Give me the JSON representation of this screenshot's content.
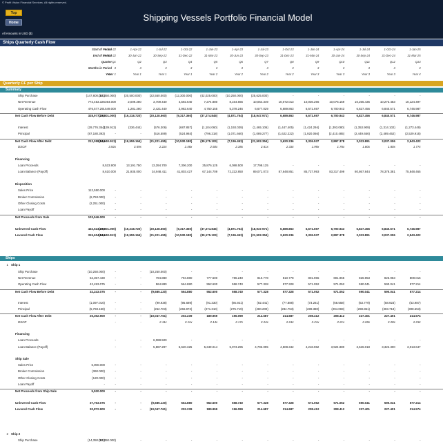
{
  "header": {
    "copyright": "© Profit Vision Financial Services. All rights reserved.",
    "top_button": "Top",
    "home_button": "Home",
    "title": "Shipping Vessels Portfolio Financial Model",
    "amounts_note": "All Amounts in USD ($)"
  },
  "sections": {
    "quarterly_cash_flow": "Ships Quarterly Cash Flow",
    "quarterly_cf_per_ship": "Quarterly CF per Ship",
    "summary": "Summary",
    "ships": "Ships"
  },
  "period_header": {
    "labels": [
      "Start of Period",
      "End of Period",
      "Quarter",
      "Months in Period",
      "Year"
    ],
    "columns": [
      [
        "1-Jan-22",
        "31-Mar-22",
        "Q1",
        "3",
        "Year 1"
      ],
      [
        "1-Apr-22",
        "30-Jun-22",
        "Q2",
        "3",
        "Year 1"
      ],
      [
        "1-Jul-22",
        "30-Sep-22",
        "Q3",
        "3",
        "Year 1"
      ],
      [
        "1-Oct-22",
        "31-Dec-22",
        "Q4",
        "3",
        "Year 1"
      ],
      [
        "1-Jan-23",
        "31-Mar-23",
        "Q5",
        "3",
        "Year 2"
      ],
      [
        "1-Apr-23",
        "30-Jun-23",
        "Q6",
        "3",
        "Year 2"
      ],
      [
        "1-Jul-23",
        "30-Sep-23",
        "Q7",
        "3",
        "Year 2"
      ],
      [
        "1-Oct-23",
        "31-Dec-23",
        "Q8",
        "3",
        "Year 2"
      ],
      [
        "1-Jan-24",
        "31-Mar-24",
        "Q9",
        "3",
        "Year 3"
      ],
      [
        "1-Apr-24",
        "30-Jun-24",
        "Q10",
        "3",
        "Year 3"
      ],
      [
        "1-Jul-24",
        "30-Sep-24",
        "Q11",
        "3",
        "Year 3"
      ],
      [
        "1-Oct-24",
        "31-Dec-24",
        "Q12",
        "3",
        "Year 3"
      ],
      [
        "1-Jan-25",
        "31-Mar-25",
        "Q13",
        "3",
        "Year 4"
      ]
    ]
  },
  "summary_rows": [
    {
      "label": "Ship Purchase",
      "style": "",
      "total": "(147,800.000)",
      "vals": [
        "(14,350.000)",
        "(20,500.000)",
        "(22,550.000)",
        "(12,300.000)",
        "(42,025.000)",
        "(10,250.000)",
        "(25,625.000)",
        "-",
        "-",
        "-",
        "-",
        "-",
        "-"
      ]
    },
    {
      "label": "Net Revenue",
      "style": "",
      "total": "772,453.326",
      "vals": [
        "364.000",
        "2,009.280",
        "3,709.440",
        "4,592.640",
        "7,274.880",
        "8,164.666",
        "10,054.349",
        "10,072.013",
        "10,036.266",
        "10,075.159",
        "10,255.436",
        "10,273.453",
        "10,124.497"
      ]
    },
    {
      "label": "Operating Cash Flow",
      "style": "",
      "total": "476,577.291",
      "vals": [
        "549.000",
        "1,281.280",
        "2,421.440",
        "2,982.640",
        "4,750.155",
        "5,378.246",
        "6,677.029",
        "6,689.863",
        "6,671.697",
        "6,700.943",
        "6,827.456",
        "6,840.571",
        "6,746.987"
      ]
    },
    {
      "label": "Net Cash Flow Before Debt",
      "style": "bold",
      "total": "328,977.291",
      "vals": [
        "(13,801.000)",
        "(19,218.720)",
        "(20,128.560)",
        "(9,317.360)",
        "(37,274.845)",
        "(4,871.754)",
        "(18,947.971)",
        "6,689.863",
        "6,671.697",
        "6,700.943",
        "6,827.456",
        "6,840.571",
        "6,746.987"
      ]
    },
    {
      "label": "",
      "style": "gap"
    },
    {
      "label": "Interest",
      "style": "",
      "total": "(29,776.354)",
      "vals": [
        "(139.913)",
        "(336.444)",
        "(576.306)",
        "(687.857)",
        "(1,104.060)",
        "(1,193.039)",
        "(1,465.106)",
        "(1,447.405)",
        "(1,424.294)",
        "(1,393.080)",
        "(1,353.909)",
        "(1,314.102)",
        "(1,273.449)"
      ]
    },
    {
      "label": "Principal",
      "style": "",
      "total": "(87,180.393)",
      "vals": [
        "-",
        "-",
        "(516.589)",
        "(524.984)",
        "(796.218)",
        "(1,071.660)",
        "(1,089.277)",
        "(1,622.222)",
        "(1,920.066)",
        "(2,410.485)",
        "(2,449.656)",
        "(2,489.462)",
        "(2,529.916)"
      ]
    },
    {
      "label": "Net Cash Flow After Debt",
      "style": "bold",
      "total": "212,058.544",
      "vals": [
        "(13,940.913)",
        "(19,555.164)",
        "(21,221.455)",
        "(10,530.180)",
        "(39,175.103)",
        "(7,136.453)",
        "(21,502.354)",
        "3,620.236",
        "3,326.537",
        "2,897.378",
        "3,023.891",
        "3,037.006",
        "2,943.422"
      ]
    },
    {
      "label": "DSCR",
      "style": "ital",
      "total": "",
      "vals": [
        "3.92x",
        "3.59x",
        "2.22x",
        "2.48x",
        "2.50x",
        "2.38x",
        "2.61x",
        "2.33x",
        "1.99x",
        "1.76x",
        "1.80x",
        "1.80x",
        "1.77x"
      ]
    },
    {
      "label": "",
      "style": "gap"
    },
    {
      "label": "Financing",
      "style": "sub",
      "total": "",
      "vals": []
    },
    {
      "label": "Loan Proceeds",
      "style": "",
      "total": "",
      "vals": [
        "8,523.900",
        "13,191.750",
        "13,394.700",
        "7,306.200",
        "25,876.125",
        "6,088.500",
        "17,798.125",
        "-",
        "-",
        "-",
        "-",
        "-",
        "-"
      ]
    },
    {
      "label": "Loan Balance (Payoff)",
      "style": "",
      "total": "",
      "vals": [
        "8,610.000",
        "21,935.000",
        "34,948.411",
        "41,803.427",
        "67,144.709",
        "72,222.850",
        "89,071.073",
        "87,648.851",
        "85,727.993",
        "83,317.499",
        "80,867.844",
        "78,378.381",
        "75,848.465"
      ]
    },
    {
      "label": "",
      "style": "gap"
    },
    {
      "label": "Disposition",
      "style": "sub",
      "total": "",
      "vals": []
    },
    {
      "label": "Sales Price",
      "style": "",
      "total": "112,550.000",
      "vals": [
        "-",
        "-",
        "-",
        "-",
        "-",
        "-",
        "-",
        "-",
        "-",
        "-",
        "-",
        "-",
        "-"
      ]
    },
    {
      "label": "Broker Commission",
      "style": "",
      "total": "(6,753.000)",
      "vals": [
        "-",
        "-",
        "-",
        "-",
        "-",
        "-",
        "-",
        "-",
        "-",
        "-",
        "-",
        "-",
        "-"
      ]
    },
    {
      "label": "Other Closing Costs",
      "style": "",
      "total": "(2,251.000)",
      "vals": [
        "-",
        "-",
        "-",
        "-",
        "-",
        "-",
        "-",
        "-",
        "-",
        "-",
        "-",
        "-",
        "-"
      ]
    },
    {
      "label": "Loan Payoff",
      "style": "",
      "total": "-",
      "vals": [
        "-",
        "-",
        "-",
        "-",
        "-",
        "-",
        "-",
        "-",
        "-",
        "-",
        "-",
        "-",
        "-"
      ]
    },
    {
      "label": "Net Proceeds from Sale",
      "style": "bold",
      "total": "103,546.000",
      "vals": [
        "-",
        "-",
        "-",
        "-",
        "-",
        "-",
        "-",
        "-",
        "-",
        "-",
        "-",
        "-",
        "-"
      ]
    },
    {
      "label": "",
      "style": "gap"
    },
    {
      "label": "Unlevered Cash Flow",
      "style": "bold",
      "total": "432,523.291",
      "vals": [
        "(13,801.000)",
        "(19,218.720)",
        "(20,128.560)",
        "(9,317.360)",
        "(37,274.845)",
        "(4,871.754)",
        "(18,947.971)",
        "6,689.863",
        "6,671.697",
        "6,700.943",
        "6,827.456",
        "6,840.571",
        "6,746.987"
      ]
    },
    {
      "label": "Levered Cash Flow",
      "style": "bold",
      "total": "315,604.544",
      "vals": [
        "(13,940.913)",
        "(19,555.164)",
        "(21,221.455)",
        "(10,530.180)",
        "(39,175.103)",
        "(7,136.453)",
        "(21,502.354)",
        "3,620.236",
        "3,326.537",
        "2,897.378",
        "3,023.891",
        "3,037.006",
        "2,943.422"
      ]
    }
  ],
  "ship1_title": {
    "num": "1",
    "label": "Ship 1"
  },
  "ship1_rows": [
    {
      "label": "Ship Purchase",
      "style": "",
      "total": "(10,250.000)",
      "vals": [
        "-",
        "-",
        "(10,250.000)",
        "-",
        "-",
        "-",
        "-",
        "-",
        "-",
        "-",
        "-",
        "-",
        "-"
      ]
    },
    {
      "label": "Net Revenue",
      "style": "",
      "total": "62,357.430",
      "vals": [
        "-",
        "-",
        "794.880",
        "794.880",
        "777.600",
        "786.240",
        "810.778",
        "810.778",
        "801.965",
        "801.965",
        "826.953",
        "826.953",
        "809.015"
      ]
    },
    {
      "label": "Operating Cash Flow",
      "style": "",
      "total": "42,493.075",
      "vals": [
        "-",
        "-",
        "564.880",
        "564.880",
        "552.600",
        "558.740",
        "577.328",
        "577.328",
        "571.052",
        "571.052",
        "590.041",
        "590.041",
        "577.214"
      ]
    },
    {
      "label": "Net Cash Flow Before Debt",
      "style": "bold",
      "total": "32,243.075",
      "vals": [
        "-",
        "-",
        "(9,685.120)",
        "564.880",
        "552.600",
        "558.740",
        "577.328",
        "577.328",
        "571.052",
        "571.052",
        "590.041",
        "590.041",
        "577.214"
      ]
    },
    {
      "label": "",
      "style": "gap"
    },
    {
      "label": "Interest",
      "style": "",
      "total": "(1,097.016)",
      "vals": [
        "-",
        "-",
        "(99.938)",
        "(95.689)",
        "(91.330)",
        "(86.921)",
        "(82.441)",
        "(77.888)",
        "(73.261)",
        "(68.558)",
        "(63.779)",
        "(58.923)",
        "(53.987)"
      ]
    },
    {
      "label": "Principal",
      "style": "",
      "total": "(5,793.158)",
      "vals": [
        "-",
        "-",
        "(262.703)",
        "(266.972)",
        "(271.310)",
        "(275.719)",
        "(280.200)",
        "(284.753)",
        "(289.380)",
        "(294.083)",
        "(298.861)",
        "(303.718)",
        "(308.653)"
      ]
    },
    {
      "label": "Net Cash Flow After Debt",
      "style": "bold",
      "total": "25,352.900",
      "vals": [
        "-",
        "-",
        "(10,047.761)",
        "202.239",
        "189.959",
        "196.099",
        "214.687",
        "214.687",
        "208.412",
        "208.412",
        "227.401",
        "227.401",
        "214.574"
      ]
    },
    {
      "label": "DSCR",
      "style": "ital",
      "total": "",
      "vals": [
        "-",
        "-",
        "2.11x",
        "2.11x",
        "2.14x",
        "2.17x",
        "2.24x",
        "2.24x",
        "2.21x",
        "2.21x",
        "2.28x",
        "2.28x",
        "2.23x"
      ]
    },
    {
      "label": "",
      "style": "gap"
    },
    {
      "label": "Financing",
      "style": "sub",
      "total": "",
      "vals": []
    },
    {
      "label": "Loan Proceeds",
      "style": "",
      "total": "",
      "vals": [
        "-",
        "-",
        "6,088.500",
        "-",
        "-",
        "-",
        "-",
        "-",
        "-",
        "-",
        "-",
        "-",
        "-"
      ]
    },
    {
      "label": "Loan Balance (Payoff)",
      "style": "",
      "total": "",
      "vals": [
        "-",
        "-",
        "5,887.297",
        "5,620.325",
        "5,349.014",
        "5,073.295",
        "4,793.095",
        "4,508.342",
        "4,218.962",
        "3,924.880",
        "3,626.018",
        "3,322.300",
        "3,013.647"
      ]
    },
    {
      "label": "",
      "style": "gap"
    },
    {
      "label": "Ship Sale",
      "style": "sub",
      "total": "",
      "vals": []
    },
    {
      "label": "Sales Price",
      "style": "",
      "total": "6,000.000",
      "vals": [
        "-",
        "-",
        "-",
        "-",
        "-",
        "-",
        "-",
        "-",
        "-",
        "-",
        "-",
        "-",
        "-"
      ]
    },
    {
      "label": "Broker Commission",
      "style": "",
      "total": "(360.000)",
      "vals": [
        "-",
        "-",
        "-",
        "-",
        "-",
        "-",
        "-",
        "-",
        "-",
        "-",
        "-",
        "-",
        "-"
      ]
    },
    {
      "label": "Other Closing Costs",
      "style": "",
      "total": "(120.000)",
      "vals": [
        "-",
        "-",
        "-",
        "-",
        "-",
        "-",
        "-",
        "-",
        "-",
        "-",
        "-",
        "-",
        "-"
      ]
    },
    {
      "label": "Loan Payoff",
      "style": "",
      "total": "-",
      "vals": [
        "-",
        "-",
        "-",
        "-",
        "-",
        "-",
        "-",
        "-",
        "-",
        "-",
        "-",
        "-",
        "-"
      ]
    },
    {
      "label": "Net Proceeds from Ship Sale",
      "style": "bold",
      "total": "5,520.000",
      "vals": [
        "-",
        "-",
        "-",
        "-",
        "-",
        "-",
        "-",
        "-",
        "-",
        "-",
        "-",
        "-",
        "-"
      ]
    },
    {
      "label": "",
      "style": "gap"
    },
    {
      "label": "Unlevered Cash Flow",
      "style": "bold",
      "total": "37,763.075",
      "vals": [
        "-",
        "-",
        "(9,685.120)",
        "564.880",
        "552.600",
        "558.740",
        "577.328",
        "577.328",
        "571.052",
        "571.052",
        "590.041",
        "590.041",
        "577.214"
      ]
    },
    {
      "label": "Levered Cash Flow",
      "style": "bold",
      "total": "30,872.900",
      "vals": [
        "-",
        "-",
        "(10,047.761)",
        "202.239",
        "189.959",
        "196.099",
        "214.687",
        "214.687",
        "208.412",
        "208.412",
        "227.401",
        "227.401",
        "214.574"
      ]
    }
  ],
  "ship2_title": {
    "num": "2",
    "label": "Ship 2"
  },
  "ship2_rows": [
    {
      "label": "Ship Purchase",
      "style": "",
      "total": "(14,350.000)",
      "vals": [
        "(14,350.000)",
        "-",
        "-",
        "-",
        "-",
        "-",
        "-",
        "-",
        "-",
        "-",
        "-",
        "-",
        "-"
      ]
    }
  ]
}
